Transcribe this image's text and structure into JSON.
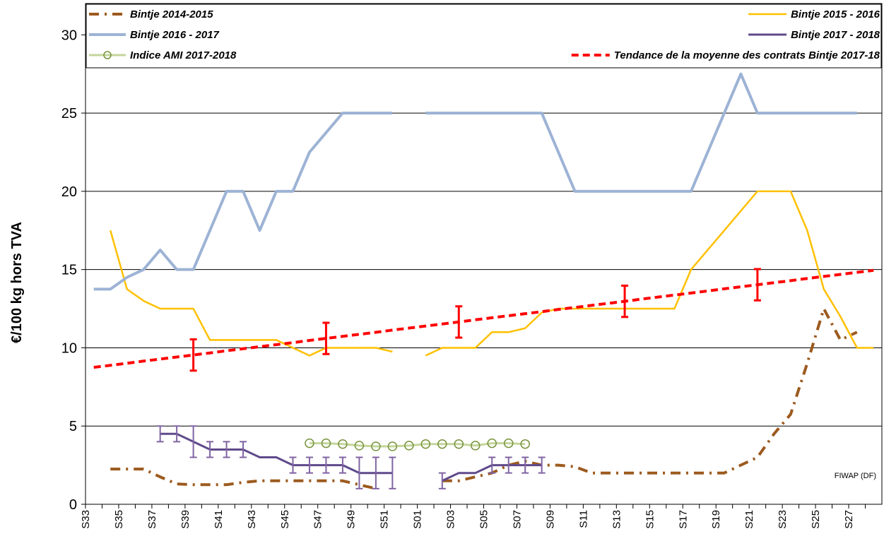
{
  "chart_data": {
    "type": "line",
    "y_label": "€/100 kg hors TVA",
    "annotation": "FIWAP (DF)",
    "categories": [
      "S33",
      null,
      "S35",
      null,
      "S37",
      null,
      "S39",
      null,
      "S41",
      null,
      "S43",
      null,
      "S45",
      null,
      "S47",
      null,
      "S49",
      null,
      "S51",
      null,
      "S01",
      null,
      "S03",
      null,
      "S05",
      null,
      "S07",
      null,
      "S09",
      null,
      "S11",
      null,
      "S13",
      null,
      "S15",
      null,
      "S17",
      null,
      "S19",
      null,
      "S21",
      null,
      "S23",
      null,
      "S25",
      null,
      "S27",
      null
    ],
    "ylim": [
      0,
      32
    ],
    "yticks": [
      0,
      5,
      10,
      15,
      20,
      25,
      30
    ],
    "grid": true,
    "series": [
      {
        "name": "Bintje 2014-2015",
        "color": "#9C5A1E",
        "style": "dashdot",
        "line_width": 4,
        "values": [
          null,
          2.25,
          2.25,
          2.25,
          1.75,
          1.3,
          1.25,
          1.25,
          1.25,
          1.4,
          1.5,
          1.5,
          1.5,
          1.5,
          1.5,
          1.5,
          1.25,
          1,
          null,
          null,
          null,
          1.5,
          1.5,
          1.75,
          2,
          2.5,
          2.75,
          2.5,
          2.5,
          2.4,
          2,
          2,
          2,
          2,
          2,
          2,
          2,
          2,
          2,
          2.5,
          3,
          4.5,
          5.75,
          9,
          12.5,
          10.5,
          11,
          null
        ]
      },
      {
        "name": "Bintje 2015 - 2016",
        "color": "#FFC000",
        "style": "solid",
        "line_width": 2.5,
        "values": [
          null,
          17.5,
          13.75,
          13,
          12.5,
          12.5,
          12.5,
          10.5,
          10.5,
          10.5,
          10.5,
          10.5,
          10,
          9.5,
          10,
          10,
          10,
          10,
          9.75,
          null,
          9.5,
          10,
          10,
          10,
          11,
          11,
          11.25,
          12.25,
          12.5,
          12.5,
          12.5,
          12.5,
          12.5,
          12.5,
          12.5,
          12.5,
          15,
          16.25,
          17.5,
          18.75,
          20,
          20,
          20,
          17.5,
          13.75,
          12,
          10,
          10
        ]
      },
      {
        "name": "Bintje 2016 - 2017",
        "color": "#9DB3D5",
        "style": "solid",
        "line_width": 4,
        "values": [
          13.75,
          13.75,
          14.5,
          15,
          16.25,
          15,
          15,
          17.5,
          20,
          20,
          17.5,
          20,
          20,
          22.5,
          23.75,
          25,
          25,
          25,
          25,
          null,
          25,
          25,
          25,
          25,
          25,
          25,
          25,
          25,
          22.5,
          20,
          20,
          20,
          20,
          20,
          20,
          20,
          20,
          22.5,
          25,
          27.5,
          25,
          25,
          25,
          25,
          25,
          25,
          25,
          null
        ]
      },
      {
        "name": "Bintje 2017 - 2018",
        "color": "#5F4A8B",
        "style": "solid",
        "line_width": 3,
        "error_color": "#8064A2",
        "values": [
          null,
          null,
          null,
          null,
          4.5,
          4.5,
          4,
          3.5,
          3.5,
          3.5,
          3,
          3,
          2.5,
          2.5,
          2.5,
          2.5,
          2,
          2,
          2,
          null,
          null,
          1.5,
          2,
          2,
          2.5,
          2.5,
          2.5,
          2.5,
          null,
          null,
          null,
          null,
          null,
          null,
          null,
          null,
          null,
          null,
          null,
          null,
          null,
          null,
          null,
          null,
          null,
          null,
          null,
          null
        ],
        "errors": [
          null,
          null,
          null,
          null,
          0.5,
          0.5,
          1,
          0.5,
          0.5,
          0.5,
          null,
          null,
          0.5,
          0.5,
          0.5,
          0.5,
          1,
          1,
          1,
          null,
          null,
          0.5,
          null,
          null,
          0.5,
          0.5,
          0.5,
          0.5,
          null,
          null,
          null,
          null,
          null,
          null,
          null,
          null,
          null,
          null,
          null,
          null,
          null,
          null,
          null,
          null,
          null,
          null,
          null,
          null
        ]
      },
      {
        "name": "Indice AMI 2017-2018",
        "color": "#C3D69B",
        "style": "solid",
        "line_width": 3,
        "marker": "circle",
        "marker_color": "#77933C",
        "values": [
          null,
          null,
          null,
          null,
          null,
          null,
          null,
          null,
          null,
          null,
          null,
          null,
          null,
          3.9,
          3.9,
          3.85,
          3.75,
          3.7,
          3.7,
          3.75,
          3.85,
          3.85,
          3.85,
          3.75,
          3.9,
          3.9,
          3.85,
          null,
          null,
          null,
          null,
          null,
          null,
          null,
          null,
          null,
          null,
          null,
          null,
          null,
          null,
          null,
          null,
          null,
          null,
          null,
          null,
          null
        ]
      },
      {
        "name": "Tendance de la moyenne des contrats Bintje 2017-18",
        "color": "#FF0000",
        "style": "dashed",
        "line_width": 4,
        "error_color": "#FF0000",
        "values": [
          8.75,
          8.88,
          9.01,
          9.15,
          9.28,
          9.41,
          9.54,
          9.67,
          9.81,
          9.94,
          10.07,
          10.2,
          10.33,
          10.47,
          10.6,
          10.73,
          10.86,
          10.99,
          11.13,
          11.26,
          11.39,
          11.52,
          11.65,
          11.79,
          11.92,
          12.05,
          12.18,
          12.31,
          12.45,
          12.58,
          12.71,
          12.84,
          12.97,
          13.11,
          13.24,
          13.37,
          13.5,
          13.63,
          13.77,
          13.9,
          14.03,
          14.16,
          14.29,
          14.43,
          14.56,
          14.69,
          14.82,
          14.95
        ],
        "errors": [
          null,
          null,
          null,
          null,
          null,
          null,
          1,
          null,
          null,
          null,
          null,
          null,
          null,
          null,
          1,
          null,
          null,
          null,
          null,
          null,
          null,
          null,
          1,
          null,
          null,
          null,
          null,
          null,
          null,
          null,
          null,
          null,
          1,
          null,
          null,
          null,
          null,
          null,
          null,
          null,
          1,
          null,
          null,
          null,
          null,
          null,
          null,
          null
        ]
      }
    ]
  }
}
